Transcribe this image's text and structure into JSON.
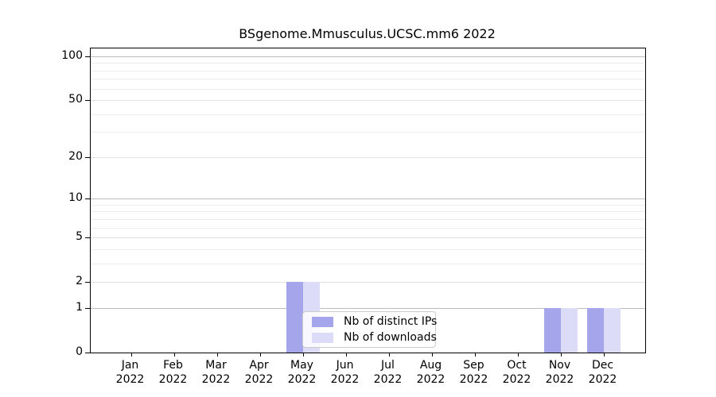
{
  "chart_data": {
    "type": "bar",
    "title": "BSgenome.Mmusculus.UCSC.mm6 2022",
    "categories": [
      "Jan",
      "Feb",
      "Mar",
      "Apr",
      "May",
      "Jun",
      "Jul",
      "Aug",
      "Sep",
      "Oct",
      "Nov",
      "Dec"
    ],
    "year_label": "2022",
    "series": [
      {
        "name": "Nb of distinct IPs",
        "color": "#a5a5ec",
        "values": [
          0,
          0,
          0,
          0,
          2,
          0,
          0,
          0,
          0,
          0,
          1,
          1
        ]
      },
      {
        "name": "Nb of downloads",
        "color": "#dcdcf8",
        "values": [
          0,
          0,
          0,
          0,
          2,
          0,
          0,
          0,
          0,
          0,
          1,
          1
        ]
      }
    ],
    "yscale": "log1p",
    "ylim": [
      0,
      113
    ],
    "yticks_major": [
      0,
      1,
      2,
      5,
      10,
      20,
      50,
      100
    ],
    "yticks_minor": [
      3,
      4,
      6,
      7,
      8,
      9,
      30,
      40,
      60,
      70,
      80,
      90
    ],
    "grid": true,
    "legend_position": "lower-center-inside"
  },
  "colors": {
    "bar_distinct_ips": "#a5a5ec",
    "bar_downloads": "#dcdcf8",
    "grid_decade": "#bdbdbd",
    "grid_mid": "#e2e2e2",
    "grid_minor": "#ededed",
    "axis": "#000000"
  }
}
